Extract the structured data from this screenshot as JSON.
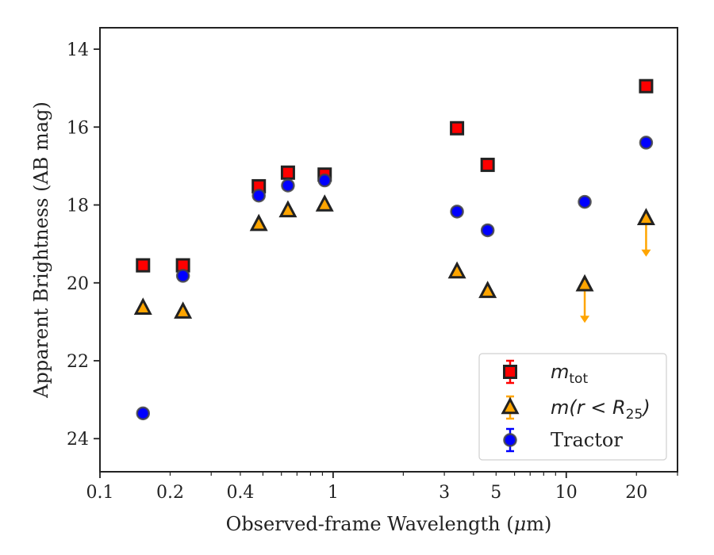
{
  "chart_data": {
    "type": "scatter",
    "xlabel_prefix": "Observed-frame Wavelength (",
    "xlabel_mu": "μ",
    "xlabel_suffix": "m)",
    "ylabel": "Apparent Brightness (AB mag)",
    "x_scale": "log",
    "xlim": [
      0.1,
      30
    ],
    "ylim": [
      24.85,
      13.45
    ],
    "y_inverted": true,
    "x_ticks": [
      {
        "value": 0.1,
        "label": "0.1"
      },
      {
        "value": 0.2,
        "label": "0.2"
      },
      {
        "value": 0.4,
        "label": "0.4"
      },
      {
        "value": 1,
        "label": "1"
      },
      {
        "value": 3,
        "label": "3"
      },
      {
        "value": 5,
        "label": "5"
      },
      {
        "value": 10,
        "label": "10"
      },
      {
        "value": 20,
        "label": "20"
      }
    ],
    "y_ticks": [
      {
        "value": 14,
        "label": "14"
      },
      {
        "value": 16,
        "label": "16"
      },
      {
        "value": 18,
        "label": "18"
      },
      {
        "value": 20,
        "label": "20"
      },
      {
        "value": 22,
        "label": "22"
      },
      {
        "value": 24,
        "label": "24"
      }
    ],
    "grid": false,
    "legend_position": "bottom-right",
    "series": [
      {
        "name_main": "m",
        "name_sub": "tot",
        "marker": "square",
        "color": "#ff0000",
        "edge": "#222222",
        "points": [
          {
            "x": 0.153,
            "y": 19.55
          },
          {
            "x": 0.227,
            "y": 19.55
          },
          {
            "x": 0.48,
            "y": 17.52
          },
          {
            "x": 0.64,
            "y": 17.17
          },
          {
            "x": 0.92,
            "y": 17.22
          },
          {
            "x": 3.4,
            "y": 16.03
          },
          {
            "x": 4.6,
            "y": 16.97
          },
          {
            "x": 22,
            "y": 14.95
          }
        ]
      },
      {
        "name_main": "m",
        "name_rest": "(r < R",
        "name_sub": "25",
        "name_close": ")",
        "marker": "triangle",
        "color": "#ffa500",
        "edge": "#222222",
        "points": [
          {
            "x": 0.153,
            "y": 20.65
          },
          {
            "x": 0.227,
            "y": 20.75
          },
          {
            "x": 0.48,
            "y": 18.5
          },
          {
            "x": 0.64,
            "y": 18.15
          },
          {
            "x": 0.92,
            "y": 18.0
          },
          {
            "x": 3.4,
            "y": 19.72
          },
          {
            "x": 4.6,
            "y": 20.22
          },
          {
            "x": 12,
            "y": 20.05,
            "upper_limit": true
          },
          {
            "x": 22,
            "y": 18.35,
            "upper_limit": true
          }
        ]
      },
      {
        "name": "Tractor",
        "marker": "circle",
        "color": "#0000ff",
        "edge": "#444444",
        "points": [
          {
            "x": 0.153,
            "y": 23.35
          },
          {
            "x": 0.227,
            "y": 19.82
          },
          {
            "x": 0.48,
            "y": 17.76
          },
          {
            "x": 0.64,
            "y": 17.5
          },
          {
            "x": 0.92,
            "y": 17.37
          },
          {
            "x": 3.4,
            "y": 18.17
          },
          {
            "x": 4.6,
            "y": 18.65
          },
          {
            "x": 12,
            "y": 17.92
          },
          {
            "x": 22,
            "y": 16.4
          }
        ]
      }
    ]
  }
}
